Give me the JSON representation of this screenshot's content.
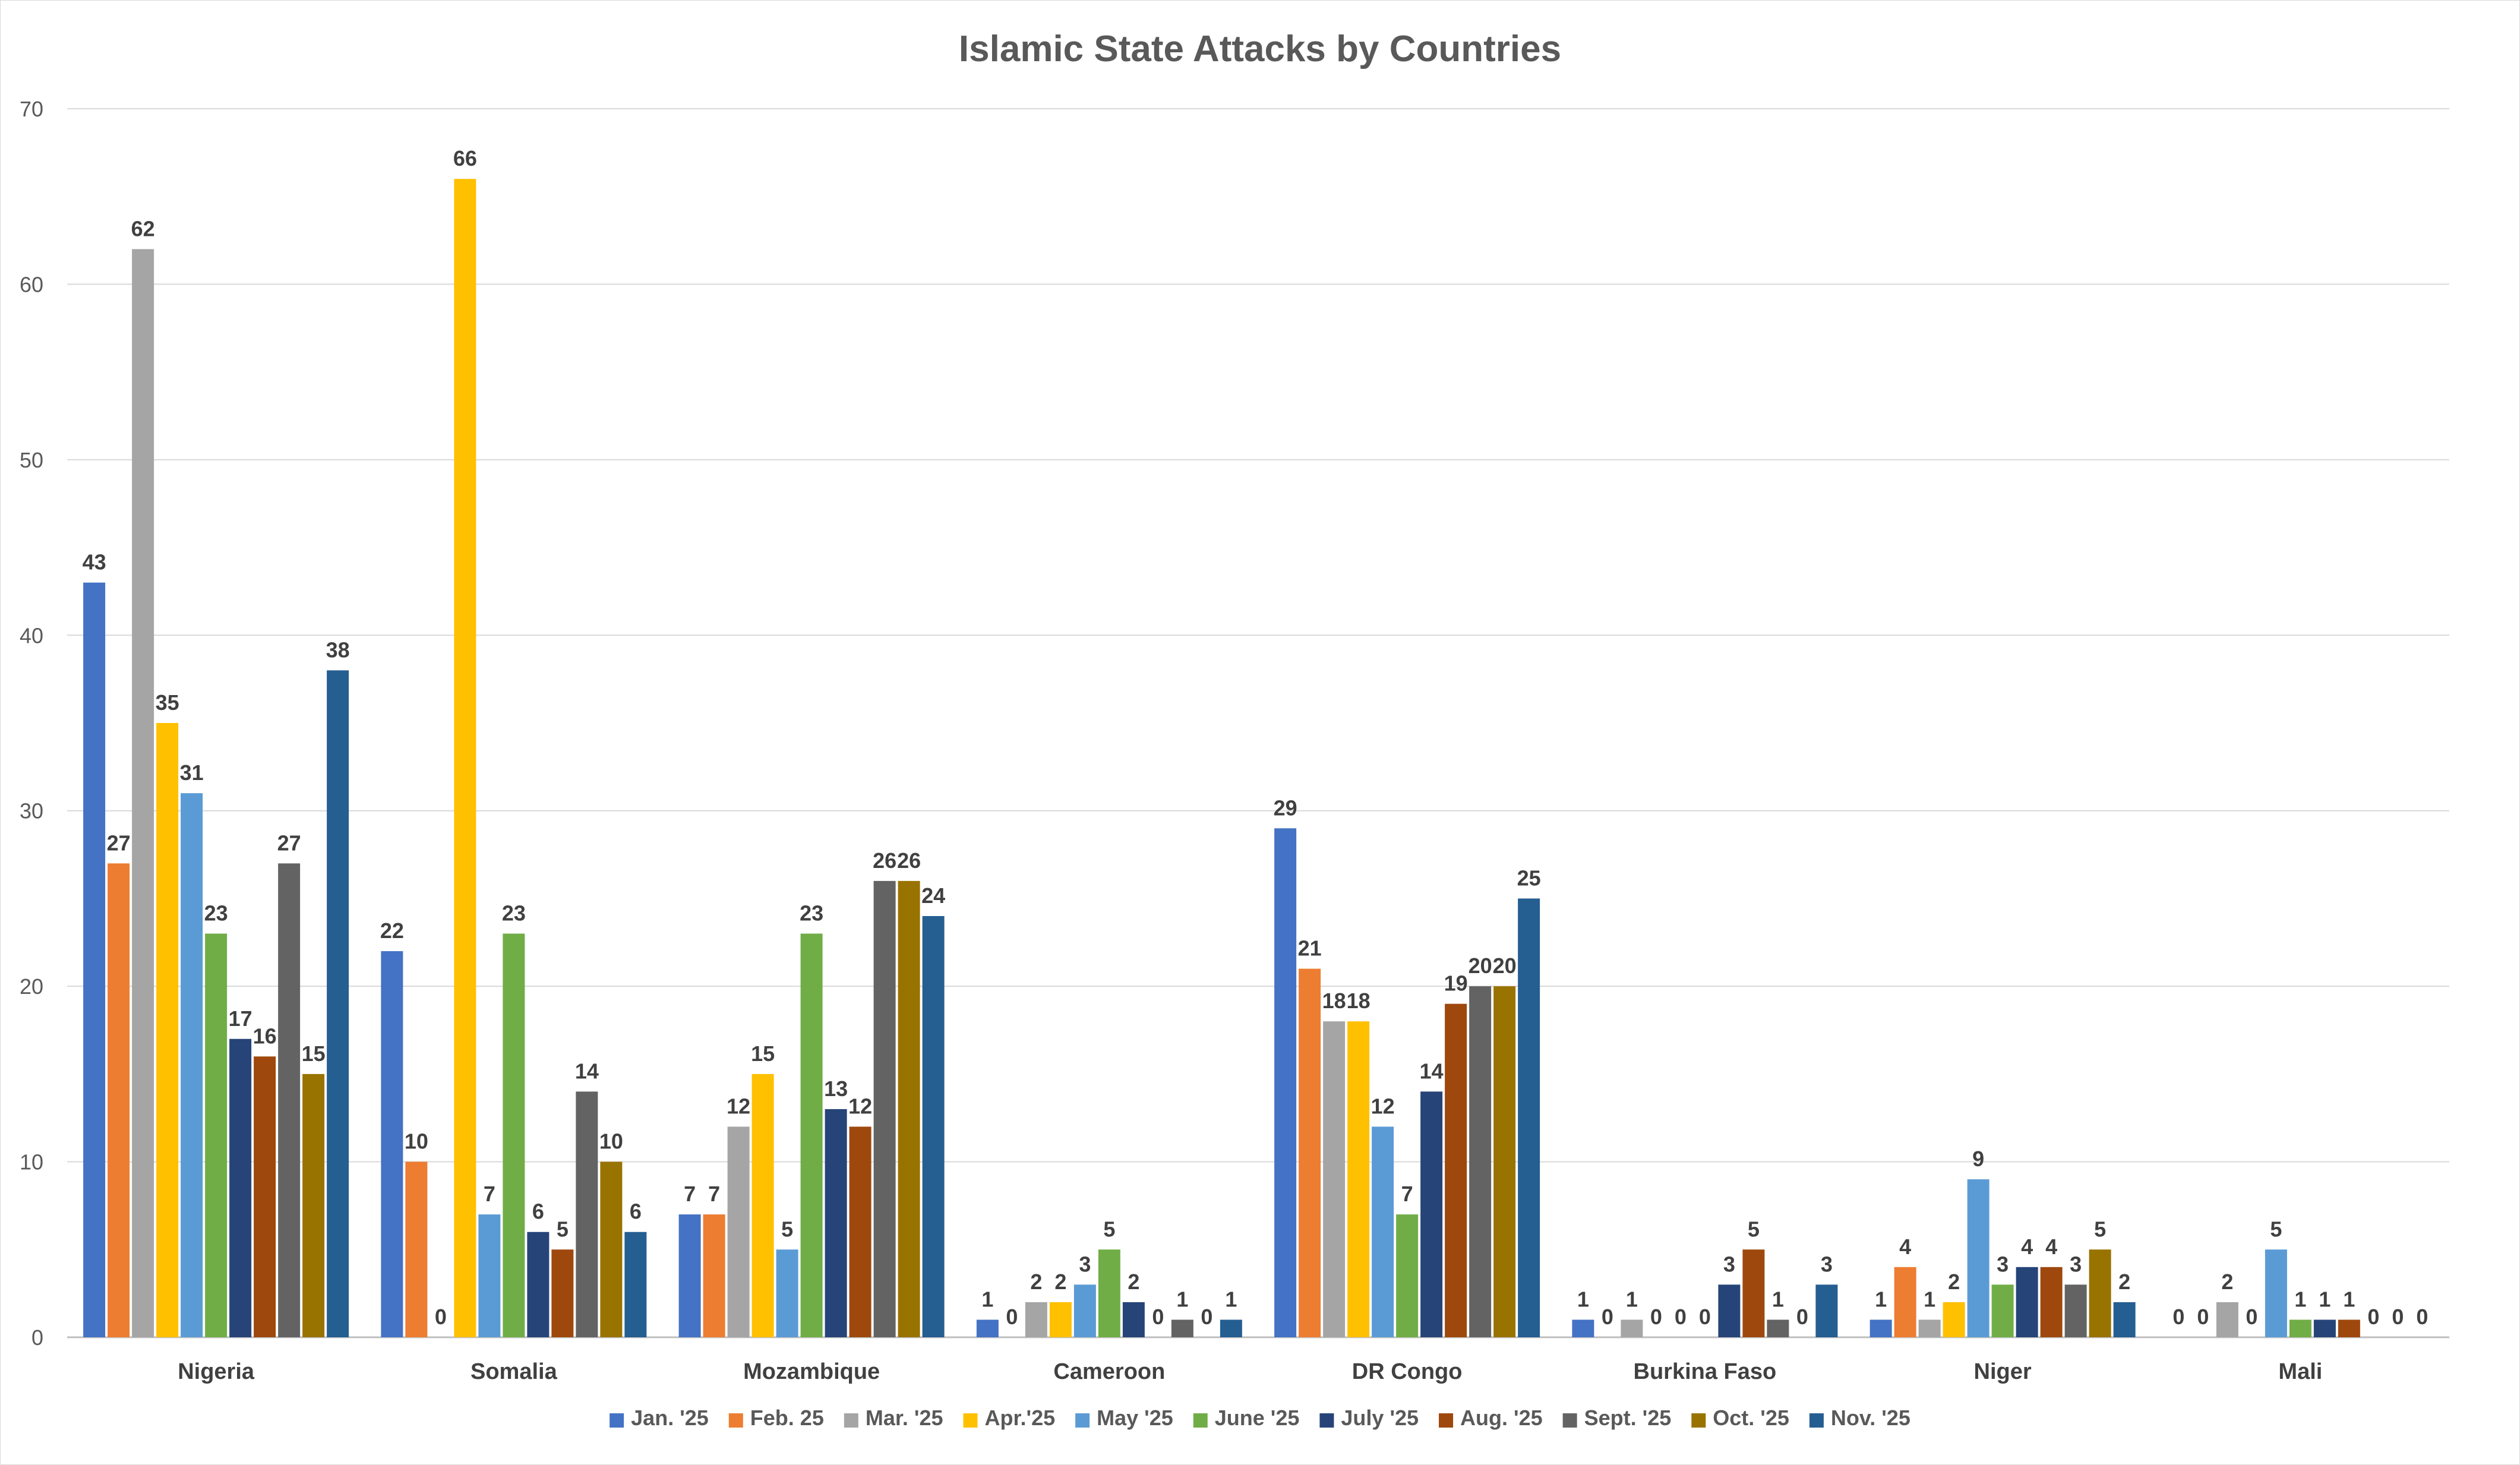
{
  "chart_data": {
    "type": "bar",
    "title": "Islamic State Attacks by Countries",
    "categories": [
      "Nigeria",
      "Somalia",
      "Mozambique",
      "Cameroon",
      "DR Congo",
      "Burkina Faso",
      "Niger",
      "Mali"
    ],
    "ylim": [
      0,
      70
    ],
    "yticks": [
      0,
      10,
      20,
      30,
      40,
      50,
      60,
      70
    ],
    "grid": true,
    "legend_position": "bottom",
    "series": [
      {
        "name": "Jan. '25",
        "color": "#4472c4",
        "values": [
          43,
          22,
          7,
          1,
          29,
          1,
          1,
          0
        ]
      },
      {
        "name": "Feb. 25",
        "color": "#ed7d31",
        "values": [
          27,
          10,
          7,
          0,
          21,
          0,
          4,
          0
        ]
      },
      {
        "name": "Mar. '25",
        "color": "#a5a5a5",
        "values": [
          62,
          0,
          12,
          2,
          18,
          1,
          1,
          2
        ]
      },
      {
        "name": "Apr.'25",
        "color": "#ffc000",
        "values": [
          35,
          66,
          15,
          2,
          18,
          0,
          2,
          0
        ]
      },
      {
        "name": "May '25",
        "color": "#5b9bd5",
        "values": [
          31,
          7,
          5,
          3,
          12,
          0,
          9,
          5
        ]
      },
      {
        "name": "June '25",
        "color": "#70ad47",
        "values": [
          23,
          23,
          23,
          5,
          7,
          0,
          3,
          1
        ]
      },
      {
        "name": "July '25",
        "color": "#264478",
        "values": [
          17,
          6,
          13,
          2,
          14,
          3,
          4,
          1
        ]
      },
      {
        "name": "Aug. '25",
        "color": "#9e480e",
        "values": [
          16,
          5,
          12,
          0,
          19,
          5,
          4,
          1
        ]
      },
      {
        "name": "Sept. '25",
        "color": "#636363",
        "values": [
          27,
          14,
          26,
          1,
          20,
          1,
          3,
          0
        ]
      },
      {
        "name": "Oct. '25",
        "color": "#997300",
        "values": [
          15,
          10,
          26,
          0,
          20,
          0,
          5,
          0
        ]
      },
      {
        "name": "Nov. '25",
        "color": "#255e91",
        "values": [
          38,
          6,
          24,
          1,
          25,
          3,
          2,
          0
        ]
      }
    ]
  }
}
